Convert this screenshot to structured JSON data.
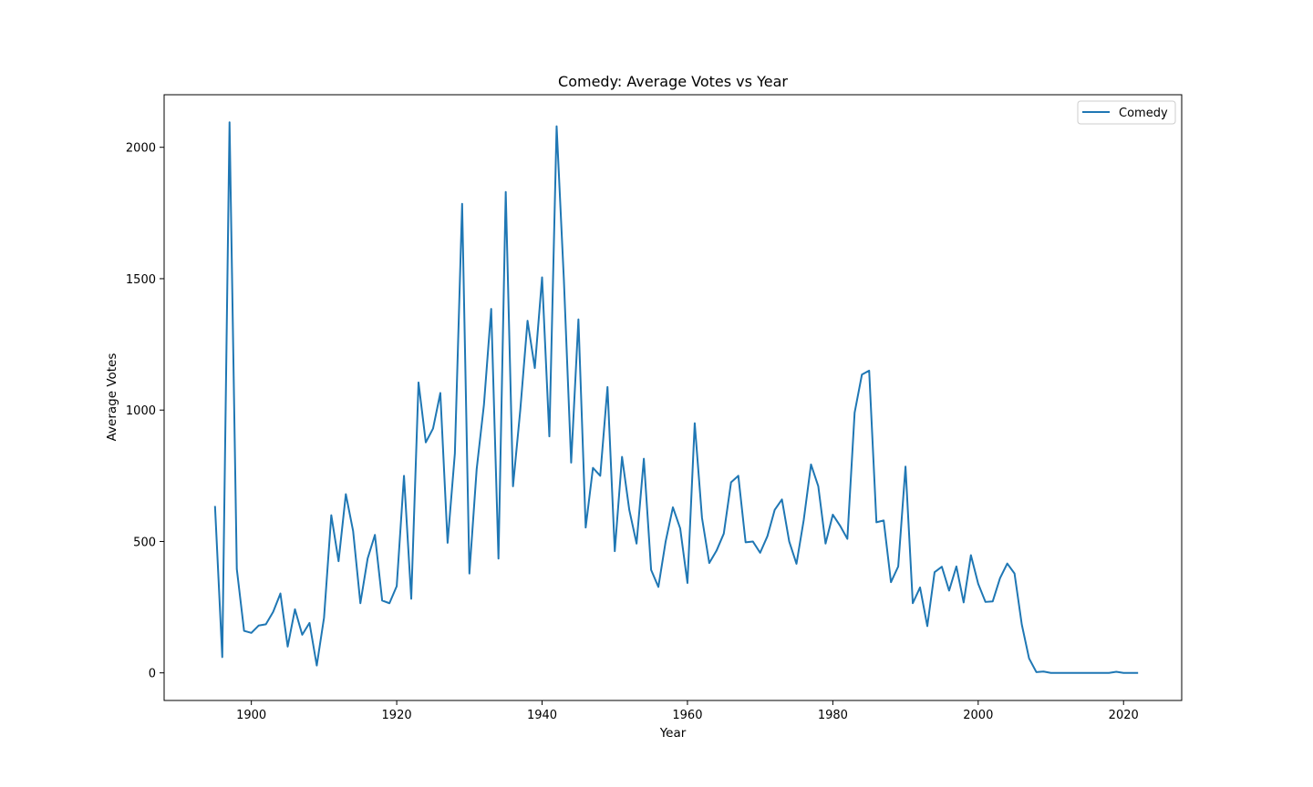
{
  "chart_data": {
    "type": "line",
    "title": "Comedy: Average Votes vs Year",
    "xlabel": "Year",
    "ylabel": "Average Votes",
    "xlim": [
      1888,
      2028
    ],
    "ylim": [
      -105,
      2200
    ],
    "xticks": [
      1900,
      1920,
      1940,
      1960,
      1980,
      2000,
      2020
    ],
    "yticks": [
      0,
      500,
      1000,
      1500,
      2000
    ],
    "grid": false,
    "legend_position": "top-right",
    "line_color": "#1f77b4",
    "series": [
      {
        "name": "Comedy",
        "x": [
          1895,
          1896,
          1897,
          1898,
          1899,
          1900,
          1901,
          1902,
          1903,
          1904,
          1905,
          1906,
          1907,
          1908,
          1909,
          1910,
          1911,
          1912,
          1913,
          1914,
          1915,
          1916,
          1917,
          1918,
          1919,
          1920,
          1921,
          1922,
          1923,
          1924,
          1925,
          1926,
          1927,
          1928,
          1929,
          1930,
          1931,
          1932,
          1933,
          1934,
          1935,
          1936,
          1937,
          1938,
          1939,
          1940,
          1941,
          1942,
          1943,
          1944,
          1945,
          1946,
          1947,
          1948,
          1949,
          1950,
          1951,
          1952,
          1953,
          1954,
          1955,
          1956,
          1957,
          1958,
          1959,
          1960,
          1961,
          1962,
          1963,
          1964,
          1965,
          1966,
          1967,
          1968,
          1969,
          1970,
          1971,
          1972,
          1973,
          1974,
          1975,
          1976,
          1977,
          1978,
          1979,
          1980,
          1981,
          1982,
          1983,
          1984,
          1985,
          1986,
          1987,
          1988,
          1989,
          1990,
          1991,
          1992,
          1993,
          1994,
          1995,
          1996,
          1997,
          1998,
          1999,
          2000,
          2001,
          2002,
          2003,
          2004,
          2005,
          2006,
          2007,
          2008,
          2009,
          2010,
          2011,
          2012,
          2013,
          2014,
          2015,
          2016,
          2017,
          2018,
          2019,
          2020,
          2021,
          2022
        ],
        "values": [
          635,
          60,
          2095,
          395,
          160,
          152,
          180,
          185,
          232,
          302,
          100,
          242,
          145,
          190,
          28,
          210,
          600,
          425,
          680,
          540,
          265,
          435,
          525,
          275,
          265,
          330,
          750,
          282,
          1105,
          877,
          930,
          1065,
          495,
          835,
          1785,
          378,
          775,
          1020,
          1385,
          435,
          1830,
          710,
          1000,
          1340,
          1160,
          1505,
          900,
          2080,
          1495,
          800,
          1345,
          553,
          780,
          750,
          1088,
          463,
          822,
          620,
          492,
          815,
          392,
          327,
          500,
          630,
          550,
          342,
          950,
          590,
          418,
          465,
          530,
          725,
          750,
          497,
          500,
          457,
          520,
          620,
          660,
          500,
          415,
          582,
          793,
          710,
          492,
          602,
          560,
          510,
          990,
          1135,
          1150,
          573,
          580,
          345,
          405,
          785,
          265,
          325,
          178,
          383,
          404,
          313,
          405,
          268,
          448,
          339,
          270,
          272,
          360,
          416,
          378,
          184,
          55,
          3,
          5,
          0,
          0,
          0,
          0,
          0,
          0,
          0,
          0,
          0,
          4,
          0,
          0,
          0
        ]
      }
    ]
  }
}
